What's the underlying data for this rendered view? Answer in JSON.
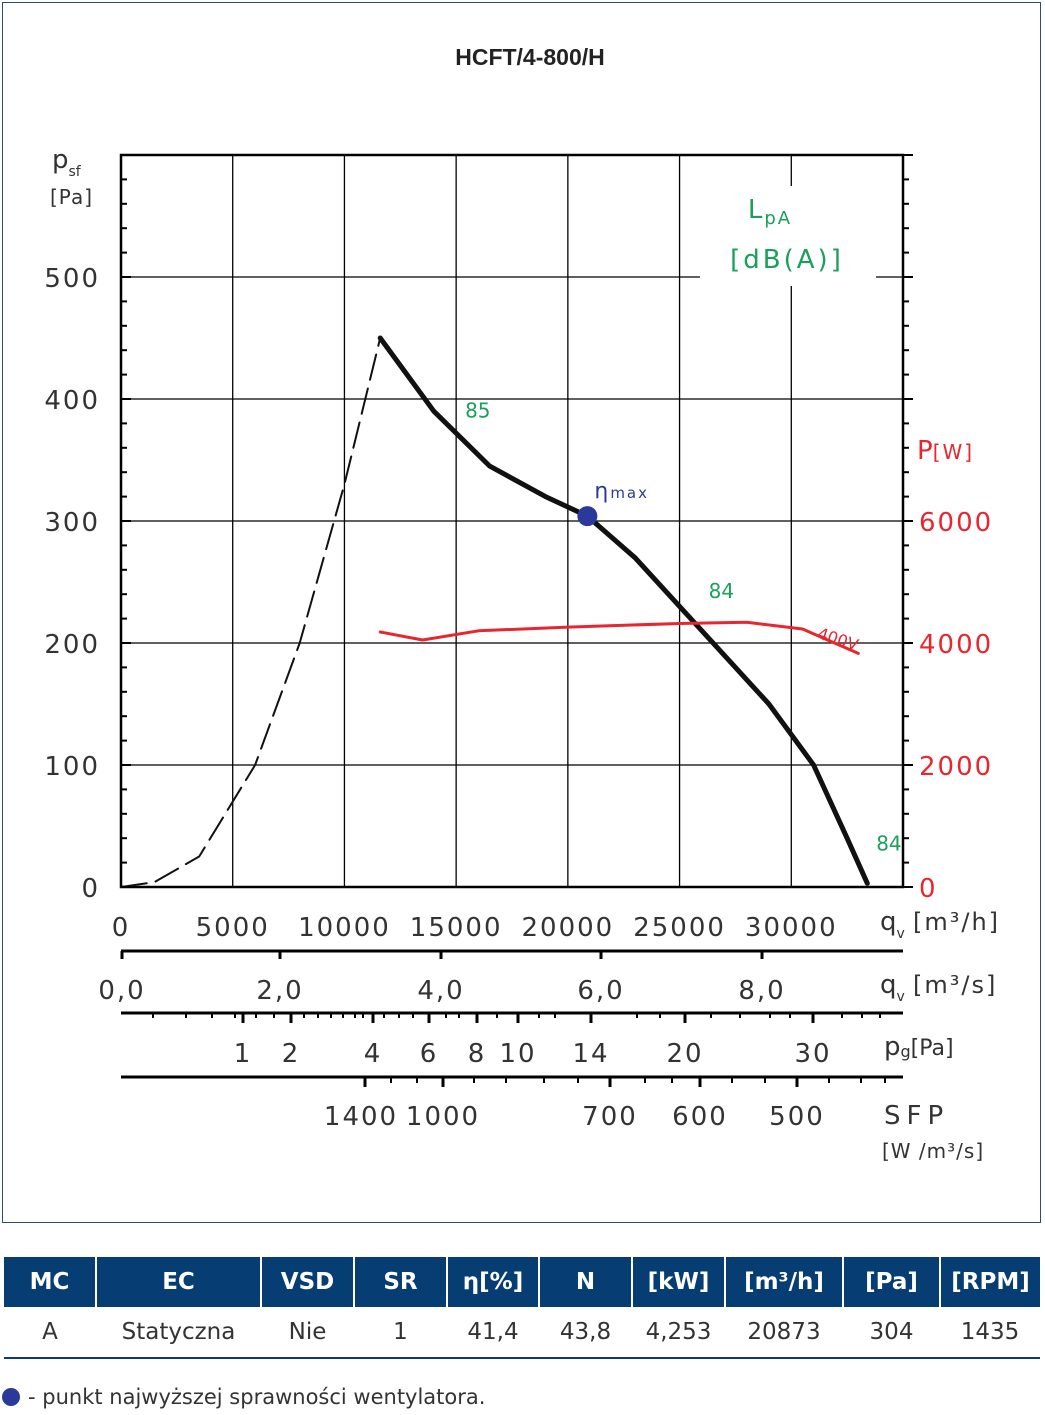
{
  "colors": {
    "curve": "#111111",
    "noise": "#1aa05a",
    "power": "#e8262f",
    "eta_point": "#2b3a9a",
    "table_header_bg": "#063d73",
    "table_header_text": "#ffffff"
  },
  "chart_data": {
    "type": "line",
    "title": "HCFT/4-800/H",
    "ylabel_main": "p",
    "ylabel_sub": "sf",
    "ylabel_unit": "[Pa]",
    "ylim": [
      0,
      600
    ],
    "xlim": [
      0,
      35000
    ],
    "grid": true,
    "y_ticks": [
      "0",
      "100",
      "200",
      "300",
      "400",
      "500"
    ],
    "x_axes": [
      {
        "label": "q",
        "sub": "v",
        "unit": "[m³/h]",
        "ticks": [
          "0",
          "5000",
          "10000",
          "15000",
          "20000",
          "25000",
          "30000"
        ]
      },
      {
        "label": "q",
        "sub": "v",
        "unit": "[m³/s]",
        "ticks": [
          "0,0",
          "2,0",
          "4,0",
          "6,0",
          "8,0"
        ]
      },
      {
        "label": "p",
        "sub": "g",
        "unit": "[Pa]",
        "ticks": [
          "1",
          "2",
          "4",
          "6",
          "8",
          "10",
          "14",
          "20",
          "30"
        ]
      },
      {
        "label": "SFP",
        "unit": "[W /m³/s]",
        "ticks": [
          "1400",
          "1000",
          "700",
          "600",
          "500"
        ]
      }
    ],
    "noise_axis": {
      "label": "L",
      "sub": "pA",
      "unit": "[dB(A)]"
    },
    "power_axis": {
      "label": "P",
      "unit": "[W]",
      "ticks": [
        "0",
        "2000",
        "4000",
        "6000"
      ],
      "ylim": [
        0,
        12000
      ]
    },
    "series": [
      {
        "name": "",
        "style": "dashed",
        "x": [
          0,
          1500,
          3500,
          6000,
          8000,
          10000,
          11600
        ],
        "y": [
          0,
          4,
          25,
          100,
          200,
          330,
          450
        ]
      },
      {
        "name": "",
        "style": "solid",
        "x": [
          11600,
          14000,
          16500,
          19000,
          20873,
          23000,
          26000,
          29000,
          31000,
          32500,
          33400
        ],
        "y": [
          450,
          390,
          345,
          320,
          304,
          270,
          210,
          150,
          100,
          40,
          3
        ]
      },
      {
        "name": "400V",
        "axis": "power",
        "x": [
          11600,
          13500,
          16000,
          20000,
          25000,
          28000,
          30500,
          33000
        ],
        "y": [
          4180,
          4050,
          4200,
          4260,
          4320,
          4340,
          4230,
          3830
        ]
      }
    ],
    "noise_labels": [
      {
        "text": "85",
        "x": 15400,
        "y": 385
      },
      {
        "text": "84",
        "x": 26300,
        "y": 237
      },
      {
        "text": "84",
        "x": 33800,
        "y": 30
      }
    ],
    "eta_point": {
      "label_main": "η",
      "label_sub": "max",
      "x": 20873,
      "y": 304
    }
  },
  "table": {
    "headers": [
      "MC",
      "EC",
      "VSD",
      "SR",
      "η[%]",
      "N",
      "[kW]",
      "[m³/h]",
      "[Pa]",
      "[RPM]"
    ],
    "row": [
      "A",
      "Statyczna",
      "Nie",
      "1",
      "41,4",
      "43,8",
      "4,253",
      "20873",
      "304",
      "1435"
    ]
  },
  "legend_note": "- punkt najwyższej sprawności wentylatora."
}
